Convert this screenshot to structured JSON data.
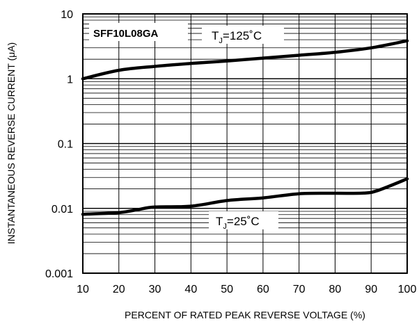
{
  "chart_data": {
    "type": "line",
    "model_label": "SFF10L08GA",
    "xlabel": "PERCENT OF RATED PEAK REVERSE VOLTAGE (%)",
    "ylabel": "INSTANTANEOUS REVERSE CURRENT (μA)",
    "x_scale": "linear",
    "y_scale": "log",
    "xlim": [
      10,
      100
    ],
    "ylim": [
      0.001,
      10
    ],
    "x_ticks": [
      "10",
      "20",
      "30",
      "40",
      "50",
      "60",
      "70",
      "80",
      "90",
      "100"
    ],
    "y_ticks": [
      "0.001",
      "0.01",
      "0.1",
      "1",
      "10"
    ],
    "grid": true,
    "series": [
      {
        "label_main": "T",
        "label_sub": "J",
        "label_rest": "=125˚C",
        "x": [
          10,
          20,
          30,
          40,
          50,
          60,
          70,
          80,
          90,
          100
        ],
        "y": [
          1.0,
          1.35,
          1.55,
          1.72,
          1.88,
          2.08,
          2.3,
          2.55,
          3.0,
          3.85
        ]
      },
      {
        "label_main": "T",
        "label_sub": "J",
        "label_rest": "=25˚C",
        "x": [
          10,
          20,
          25,
          30,
          40,
          50,
          60,
          70,
          80,
          88,
          92,
          100
        ],
        "y": [
          0.0081,
          0.0086,
          0.0095,
          0.0105,
          0.0108,
          0.0132,
          0.0145,
          0.0168,
          0.0171,
          0.0172,
          0.019,
          0.0285
        ]
      }
    ]
  }
}
